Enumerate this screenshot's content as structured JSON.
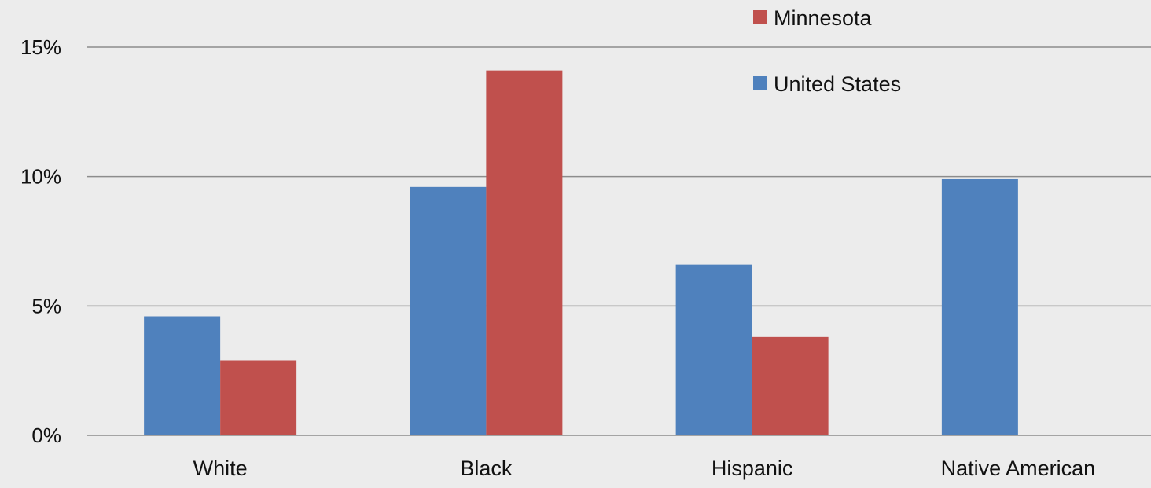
{
  "chart_data": {
    "type": "bar",
    "categories": [
      "White",
      "Black",
      "Hispanic",
      "Native American"
    ],
    "series": [
      {
        "name": "United States",
        "color": "#4f81bd",
        "values": [
          4.6,
          9.6,
          6.6,
          9.9
        ]
      },
      {
        "name": "Minnesota",
        "color": "#c0504d",
        "values": [
          2.9,
          14.1,
          3.8,
          null
        ]
      }
    ],
    "title": "",
    "xlabel": "",
    "ylabel": "",
    "ylim": [
      0,
      15
    ],
    "yticks": [
      0,
      5,
      10,
      15
    ],
    "ytick_labels": [
      "0%",
      "5%",
      "10%",
      "15%"
    ],
    "grid": true,
    "legend": {
      "placement": "top-right",
      "order": [
        "Minnesota",
        "United States"
      ]
    },
    "background": "#ececec"
  }
}
